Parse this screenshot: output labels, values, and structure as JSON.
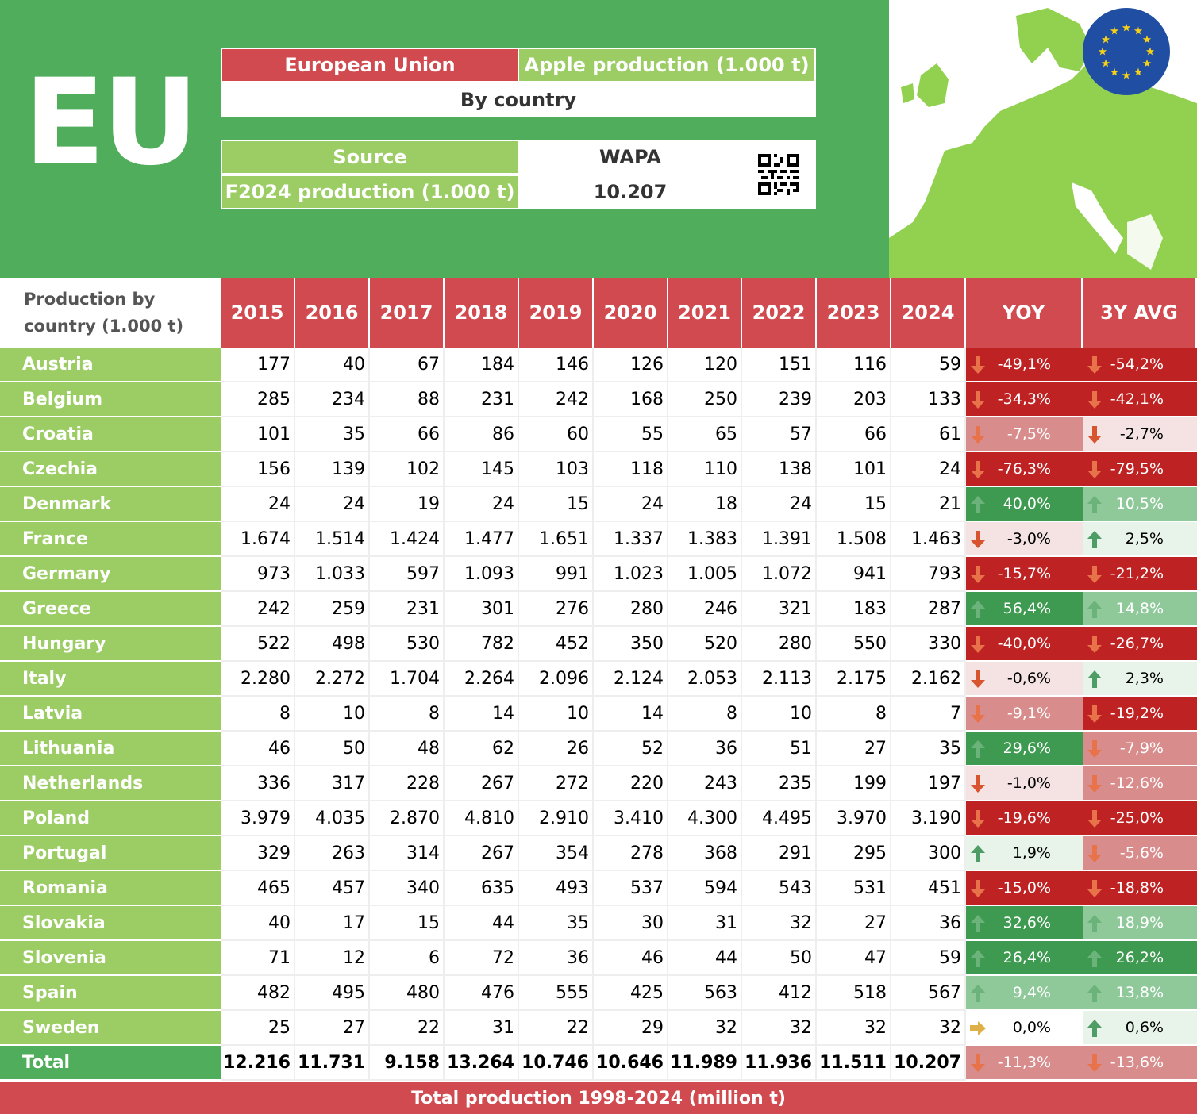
{
  "header": {
    "big_label": "EU",
    "region": "European Union",
    "metric": "Apple production (1.000 t)",
    "breakdown": "By country",
    "source_label": "Source",
    "source_value": "WAPA",
    "forecast_label": "F2024 production (1.000 t)",
    "forecast_value": "10.207"
  },
  "colors": {
    "header_green": "#4fad5b",
    "light_green": "#9ccd65",
    "red": "#d14a4f",
    "map_green": "#92d050",
    "eu_blue": "#1f4ea3",
    "star_yellow": "#f7d117"
  },
  "chart_data": {
    "type": "table",
    "title": "Production by country (1.000 t)",
    "columns": [
      "2015",
      "2016",
      "2017",
      "2018",
      "2019",
      "2020",
      "2021",
      "2022",
      "2023",
      "2024",
      "YOY",
      "3Y AVG"
    ],
    "rows": [
      {
        "name": "Austria",
        "values": [
          "177",
          "40",
          "67",
          "184",
          "146",
          "126",
          "120",
          "151",
          "116",
          "59"
        ],
        "yoy": "-49,1%",
        "avg": "-54,2%"
      },
      {
        "name": "Belgium",
        "values": [
          "285",
          "234",
          "88",
          "231",
          "242",
          "168",
          "250",
          "239",
          "203",
          "133"
        ],
        "yoy": "-34,3%",
        "avg": "-42,1%"
      },
      {
        "name": "Croatia",
        "values": [
          "101",
          "35",
          "66",
          "86",
          "60",
          "55",
          "65",
          "57",
          "66",
          "61"
        ],
        "yoy": "-7,5%",
        "avg": "-2,7%"
      },
      {
        "name": "Czechia",
        "values": [
          "156",
          "139",
          "102",
          "145",
          "103",
          "118",
          "110",
          "138",
          "101",
          "24"
        ],
        "yoy": "-76,3%",
        "avg": "-79,5%"
      },
      {
        "name": "Denmark",
        "values": [
          "24",
          "24",
          "19",
          "24",
          "15",
          "24",
          "18",
          "24",
          "15",
          "21"
        ],
        "yoy": "40,0%",
        "avg": "10,5%"
      },
      {
        "name": "France",
        "values": [
          "1.674",
          "1.514",
          "1.424",
          "1.477",
          "1.651",
          "1.337",
          "1.383",
          "1.391",
          "1.508",
          "1.463"
        ],
        "yoy": "-3,0%",
        "avg": "2,5%"
      },
      {
        "name": "Germany",
        "values": [
          "973",
          "1.033",
          "597",
          "1.093",
          "991",
          "1.023",
          "1.005",
          "1.072",
          "941",
          "793"
        ],
        "yoy": "-15,7%",
        "avg": "-21,2%"
      },
      {
        "name": "Greece",
        "values": [
          "242",
          "259",
          "231",
          "301",
          "276",
          "280",
          "246",
          "321",
          "183",
          "287"
        ],
        "yoy": "56,4%",
        "avg": "14,8%"
      },
      {
        "name": "Hungary",
        "values": [
          "522",
          "498",
          "530",
          "782",
          "452",
          "350",
          "520",
          "280",
          "550",
          "330"
        ],
        "yoy": "-40,0%",
        "avg": "-26,7%"
      },
      {
        "name": "Italy",
        "values": [
          "2.280",
          "2.272",
          "1.704",
          "2.264",
          "2.096",
          "2.124",
          "2.053",
          "2.113",
          "2.175",
          "2.162"
        ],
        "yoy": "-0,6%",
        "avg": "2,3%"
      },
      {
        "name": "Latvia",
        "values": [
          "8",
          "10",
          "8",
          "14",
          "10",
          "14",
          "8",
          "10",
          "8",
          "7"
        ],
        "yoy": "-9,1%",
        "avg": "-19,2%"
      },
      {
        "name": "Lithuania",
        "values": [
          "46",
          "50",
          "48",
          "62",
          "26",
          "52",
          "36",
          "51",
          "27",
          "35"
        ],
        "yoy": "29,6%",
        "avg": "-7,9%"
      },
      {
        "name": "Netherlands",
        "values": [
          "336",
          "317",
          "228",
          "267",
          "272",
          "220",
          "243",
          "235",
          "199",
          "197"
        ],
        "yoy": "-1,0%",
        "avg": "-12,6%"
      },
      {
        "name": "Poland",
        "values": [
          "3.979",
          "4.035",
          "2.870",
          "4.810",
          "2.910",
          "3.410",
          "4.300",
          "4.495",
          "3.970",
          "3.190"
        ],
        "yoy": "-19,6%",
        "avg": "-25,0%"
      },
      {
        "name": "Portugal",
        "values": [
          "329",
          "263",
          "314",
          "267",
          "354",
          "278",
          "368",
          "291",
          "295",
          "300"
        ],
        "yoy": "1,9%",
        "avg": "-5,6%"
      },
      {
        "name": "Romania",
        "values": [
          "465",
          "457",
          "340",
          "635",
          "493",
          "537",
          "594",
          "543",
          "531",
          "451"
        ],
        "yoy": "-15,0%",
        "avg": "-18,8%"
      },
      {
        "name": "Slovakia",
        "values": [
          "40",
          "17",
          "15",
          "44",
          "35",
          "30",
          "31",
          "32",
          "27",
          "36"
        ],
        "yoy": "32,6%",
        "avg": "18,9%"
      },
      {
        "name": "Slovenia",
        "values": [
          "71",
          "12",
          "6",
          "72",
          "36",
          "46",
          "44",
          "50",
          "47",
          "59"
        ],
        "yoy": "26,4%",
        "avg": "26,2%"
      },
      {
        "name": "Spain",
        "values": [
          "482",
          "495",
          "480",
          "476",
          "555",
          "425",
          "563",
          "412",
          "518",
          "567"
        ],
        "yoy": "9,4%",
        "avg": "13,8%"
      },
      {
        "name": "Sweden",
        "values": [
          "25",
          "27",
          "22",
          "31",
          "22",
          "29",
          "32",
          "32",
          "32",
          "32"
        ],
        "yoy": "0,0%",
        "avg": "0,6%"
      }
    ],
    "total": {
      "name": "Total",
      "values": [
        "12.216",
        "11.731",
        "9.158",
        "13.264",
        "10.746",
        "10.646",
        "11.989",
        "11.936",
        "11.511",
        "10.207"
      ],
      "yoy": "-11,3%",
      "avg": "-13,6%"
    }
  },
  "footer": {
    "title": "Total production 1998-2024 (million t)"
  }
}
